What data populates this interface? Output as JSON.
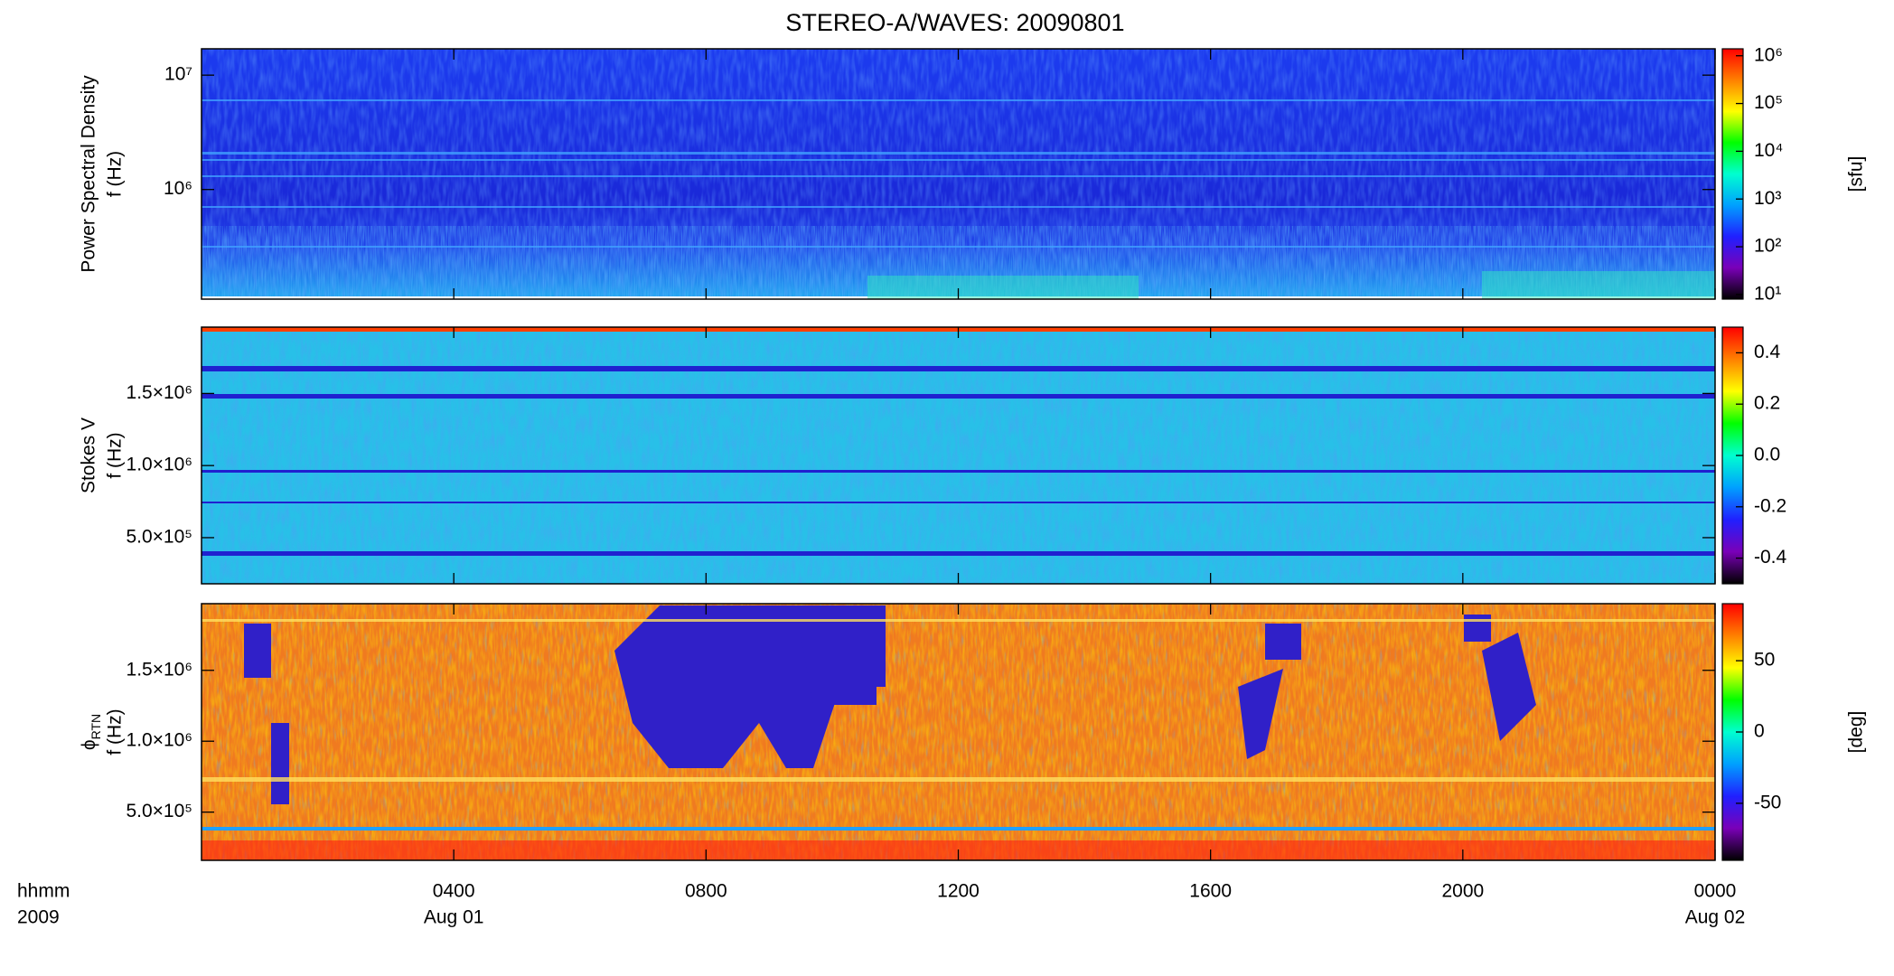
{
  "chart_data": [
    {
      "type": "spectrogram",
      "title": "STEREO-A/WAVES: 20090801",
      "y_label": [
        "Power Spectral Density",
        "f (Hz)"
      ],
      "log_y": true,
      "ylim": [
        110000,
        17000000
      ],
      "yticks": [
        {
          "value": 1000000,
          "label": "10⁶"
        },
        {
          "value": 10000000,
          "label": "10⁷"
        }
      ],
      "colorbar": {
        "log": true,
        "clim": [
          8,
          1400000
        ],
        "label": "[sfu]",
        "colormap": [
          "#000000",
          "#7a00b8",
          "#2020ff",
          "#00a0ff",
          "#00ffd0",
          "#00ff00",
          "#ffff00",
          "#ff8000",
          "#ff0000"
        ],
        "cticks": [
          {
            "value": 10,
            "label": "10¹"
          },
          {
            "value": 100,
            "label": "10²"
          },
          {
            "value": 1000,
            "label": "10³"
          },
          {
            "value": 10000,
            "label": "10⁴"
          },
          {
            "value": 100000,
            "label": "10⁵"
          },
          {
            "value": 1000000,
            "label": "10⁶"
          }
        ]
      }
    },
    {
      "type": "spectrogram",
      "y_label": [
        "Stokes V",
        "f (Hz)"
      ],
      "log_y": false,
      "ylim": [
        180000,
        1960000
      ],
      "yticks": [
        {
          "value": 500000,
          "label": "5.0×10⁵"
        },
        {
          "value": 1000000,
          "label": "1.0×10⁶"
        },
        {
          "value": 1500000,
          "label": "1.5×10⁶"
        }
      ],
      "colorbar": {
        "log": false,
        "clim": [
          -0.5,
          0.5
        ],
        "colormap": [
          "#000000",
          "#7a00b8",
          "#2020ff",
          "#00a0ff",
          "#00ffd0",
          "#00ff00",
          "#ffff00",
          "#ff8000",
          "#ff0000"
        ],
        "cticks": [
          -0.4,
          -0.2,
          {
            "value": 0,
            "label": "0.0"
          },
          0.2,
          0.4
        ]
      }
    },
    {
      "type": "spectrogram",
      "y_label_symbol": "ϕ",
      "y_label_subscript": "RTN",
      "y_label_unit": "f (Hz)",
      "log_y": false,
      "ylim": [
        160000,
        1970000
      ],
      "yticks": [
        {
          "value": 500000,
          "label": "5.0×10⁵"
        },
        {
          "value": 1000000,
          "label": "1.0×10⁶"
        },
        {
          "value": 1500000,
          "label": "1.5×10⁶"
        }
      ],
      "colorbar": {
        "log": false,
        "clim": [
          -90,
          90
        ],
        "label": "[deg]",
        "colormap": [
          "#000000",
          "#7a00b8",
          "#2020ff",
          "#00a0ff",
          "#00ffd0",
          "#00ff00",
          "#ffff00",
          "#ff8000",
          "#ff0000"
        ],
        "cticks": [
          -50,
          0,
          50
        ]
      },
      "xlim": [
        0,
        24
      ],
      "xticks": [
        {
          "value": 4,
          "label": "0400"
        },
        {
          "value": 8,
          "label": "0800"
        },
        {
          "value": 12,
          "label": "1200"
        },
        {
          "value": 16,
          "label": "1600"
        },
        {
          "value": 20,
          "label": "2000"
        },
        {
          "value": 24,
          "label": "0000"
        }
      ],
      "date_labels": [
        {
          "value": 4,
          "label": "Aug 01"
        },
        {
          "value": 24,
          "label": "Aug 02"
        }
      ],
      "x_corner_labels": [
        "hhmm",
        "2009"
      ]
    }
  ]
}
